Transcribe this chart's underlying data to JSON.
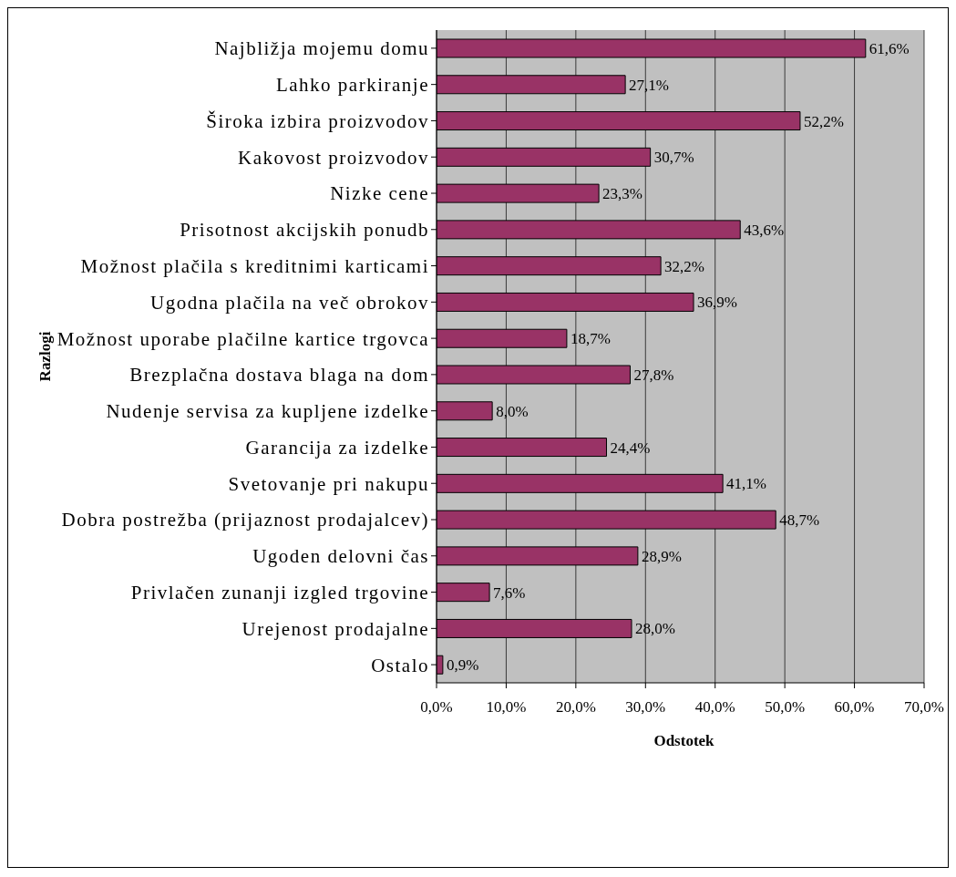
{
  "chart_data": {
    "type": "bar",
    "orientation": "horizontal",
    "xlabel": "Odstotek",
    "ylabel": "Razlogi",
    "categories": [
      "Najbližja mojemu domu",
      "Lahko parkiranje",
      "Široka izbira proizvodov",
      "Kakovost proizvodov",
      "Nizke cene",
      "Prisotnost akcijskih ponudb",
      "Možnost plačila s kreditnimi karticami",
      "Ugodna plačila na več obrokov",
      "Možnost uporabe plačilne kartice trgovca",
      "Brezplačna dostava blaga na dom",
      "Nudenje servisa za kupljene izdelke",
      "Garancija za izdelke",
      "Svetovanje pri nakupu",
      "Dobra postrežba (prijaznost prodajalcev)",
      "Ugoden delovni čas",
      "Privlačen zunanji izgled trgovine",
      "Urejenost prodajalne",
      "Ostalo"
    ],
    "values": [
      61.6,
      27.1,
      52.2,
      30.7,
      23.3,
      43.6,
      32.2,
      36.9,
      18.7,
      27.8,
      8.0,
      24.4,
      41.1,
      48.7,
      28.9,
      7.6,
      28.0,
      0.9
    ],
    "value_labels": [
      "61,6%",
      "27,1%",
      "52,2%",
      "30,7%",
      "23,3%",
      "43,6%",
      "32,2%",
      "36,9%",
      "18,7%",
      "27,8%",
      "8,0%",
      "24,4%",
      "41,1%",
      "48,7%",
      "28,9%",
      "7,6%",
      "28,0%",
      "0,9%"
    ],
    "color": "#993366",
    "xlim": [
      0,
      70
    ],
    "xticks": [
      {
        "value": 0,
        "label": "0,0%"
      },
      {
        "value": 10,
        "label": "10,0%"
      },
      {
        "value": 20,
        "label": "20,0%"
      },
      {
        "value": 30,
        "label": "30,0%"
      },
      {
        "value": 40,
        "label": "40,0%"
      },
      {
        "value": 50,
        "label": "50,0%"
      },
      {
        "value": 60,
        "label": "60,0%"
      },
      {
        "value": 70,
        "label": "70,0%"
      }
    ],
    "grid": "x"
  }
}
